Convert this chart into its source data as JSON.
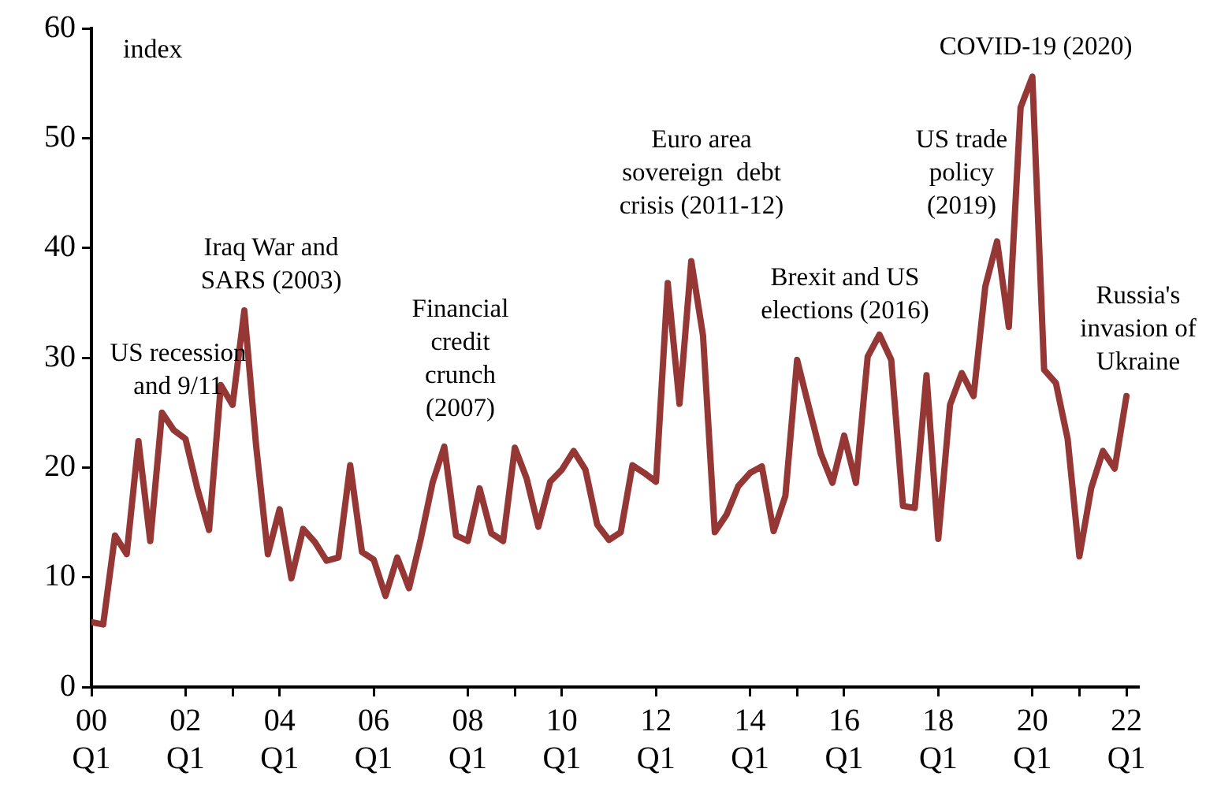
{
  "chart_data": {
    "type": "line",
    "ylabel": "index",
    "x": [
      "2000-01",
      "2000-04",
      "2000-07",
      "2000-10",
      "2001-01",
      "2001-04",
      "2001-07",
      "2001-10",
      "2002-01",
      "2002-04",
      "2002-07",
      "2002-10",
      "2003-01",
      "2003-04",
      "2003-07",
      "2003-10",
      "2004-01",
      "2004-04",
      "2004-07",
      "2004-10",
      "2005-01",
      "2005-04",
      "2005-07",
      "2005-10",
      "2006-01",
      "2006-04",
      "2006-07",
      "2006-10",
      "2007-01",
      "2007-04",
      "2007-07",
      "2007-10",
      "2008-01",
      "2008-04",
      "2008-07",
      "2008-10",
      "2009-01",
      "2009-04",
      "2009-07",
      "2009-10",
      "2010-01",
      "2010-04",
      "2010-07",
      "2010-10",
      "2011-01",
      "2011-04",
      "2011-07",
      "2011-10",
      "2012-01",
      "2012-04",
      "2012-07",
      "2012-10",
      "2013-01",
      "2013-04",
      "2013-07",
      "2013-10",
      "2014-01",
      "2014-04",
      "2014-07",
      "2014-10",
      "2015-01",
      "2015-04",
      "2015-07",
      "2015-10",
      "2016-01",
      "2016-04",
      "2016-07",
      "2016-10",
      "2017-01",
      "2017-04",
      "2017-07",
      "2017-10",
      "2018-01",
      "2018-04",
      "2018-07",
      "2018-10",
      "2019-01",
      "2019-04",
      "2019-07",
      "2019-10",
      "2020-01",
      "2020-04",
      "2020-07",
      "2020-10",
      "2021-01",
      "2021-04",
      "2021-07",
      "2021-10",
      "2022-01"
    ],
    "series": [
      {
        "color": "#953735",
        "values": [
          5.9,
          5.7,
          13.8,
          12.1,
          22.4,
          13.3,
          25.0,
          23.4,
          22.6,
          18.1,
          14.3,
          27.5,
          25.7,
          34.3,
          22,
          12.1,
          16.2,
          9.9,
          14.4,
          13.2,
          11.5,
          11.8,
          20.2,
          12.3,
          11.6,
          8.3,
          11.8,
          9.0,
          13.5,
          18.6,
          21.9,
          13.8,
          13.3,
          18.1,
          14.0,
          13.3,
          21.8,
          19.0,
          14.6,
          18.7,
          19.8,
          21.5,
          19.8,
          14.8,
          13.4,
          14.1,
          20.2,
          19.5,
          18.7,
          36.8,
          25.8,
          38.8,
          32.0,
          14.1,
          15.7,
          18.3,
          19.5,
          20.1,
          14.2,
          17.4,
          29.8,
          25.5,
          21.3,
          18.6,
          22.9,
          18.6,
          30.1,
          32.1,
          29.8,
          16.5,
          16.3,
          28.4,
          13.5,
          25.7,
          28.6,
          26.5,
          36.5,
          40.6,
          32.8,
          52.8,
          55.6,
          28.9,
          27.7,
          22.6,
          11.9,
          18.1,
          21.5,
          19.9,
          26.5
        ]
      }
    ],
    "xlim": [
      "2000-01",
      "2022-04"
    ],
    "xticks": [
      {
        "value": "2000-01",
        "label": "00\nQ1"
      },
      {
        "value": "2002-01",
        "label": "02\nQ1"
      },
      {
        "value": "2003-01",
        "label": null
      },
      {
        "value": "2004-01",
        "label": "04\nQ1"
      },
      {
        "value": "2006-01",
        "label": "06\nQ1"
      },
      {
        "value": "2008-01",
        "label": "08\nQ1"
      },
      {
        "value": "2009-01",
        "label": null
      },
      {
        "value": "2010-01",
        "label": "10\nQ1"
      },
      {
        "value": "2012-01",
        "label": "12\nQ1"
      },
      {
        "value": "2014-01",
        "label": "14\nQ1"
      },
      {
        "value": "2015-01",
        "label": null
      },
      {
        "value": "2016-01",
        "label": "16\nQ1"
      },
      {
        "value": "2018-01",
        "label": "18\nQ1"
      },
      {
        "value": "2020-01",
        "label": "20\nQ1"
      },
      {
        "value": "2021-01",
        "label": null
      },
      {
        "value": "2022-01",
        "label": "22\nQ1"
      }
    ],
    "ylim": [
      0,
      60
    ],
    "yticks": [
      0,
      10,
      20,
      30,
      40,
      50,
      60
    ],
    "marker": "none",
    "line_style": "solid",
    "annotations": [
      "US recession\nand 9/11",
      "Iraq War and\nSARS (2003)",
      "Financial\ncredit\ncrunch\n(2007)",
      "Euro area\nsovereign  debt\ncrisis (2011-12)",
      "Brexit and US\nelections (2016)",
      "US trade\npolicy\n(2019)",
      "COVID-19 (2020)",
      "Russia's\ninvasion of\nUkraine"
    ]
  }
}
